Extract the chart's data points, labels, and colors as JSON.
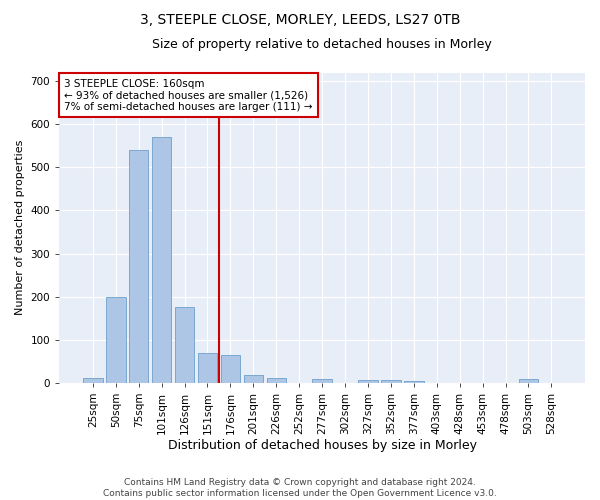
{
  "title": "3, STEEPLE CLOSE, MORLEY, LEEDS, LS27 0TB",
  "subtitle": "Size of property relative to detached houses in Morley",
  "xlabel": "Distribution of detached houses by size in Morley",
  "ylabel": "Number of detached properties",
  "categories": [
    "25sqm",
    "50sqm",
    "75sqm",
    "101sqm",
    "126sqm",
    "151sqm",
    "176sqm",
    "201sqm",
    "226sqm",
    "252sqm",
    "277sqm",
    "302sqm",
    "327sqm",
    "352sqm",
    "377sqm",
    "403sqm",
    "428sqm",
    "453sqm",
    "478sqm",
    "503sqm",
    "528sqm"
  ],
  "values": [
    10,
    200,
    540,
    570,
    175,
    70,
    65,
    18,
    10,
    0,
    8,
    0,
    7,
    6,
    5,
    0,
    0,
    0,
    0,
    8,
    0
  ],
  "bar_color": "#adc6e5",
  "bar_edge_color": "#6ea0cc",
  "property_line_x": 5.5,
  "annotation_text": "3 STEEPLE CLOSE: 160sqm\n← 93% of detached houses are smaller (1,526)\n7% of semi-detached houses are larger (111) →",
  "annotation_box_color": "#ffffff",
  "annotation_box_edge": "#cc0000",
  "vline_color": "#cc0000",
  "ylim": [
    0,
    720
  ],
  "yticks": [
    0,
    100,
    200,
    300,
    400,
    500,
    600,
    700
  ],
  "background_color": "#e8eef7",
  "grid_color": "#ffffff",
  "footer_line1": "Contains HM Land Registry data © Crown copyright and database right 2024.",
  "footer_line2": "Contains public sector information licensed under the Open Government Licence v3.0.",
  "title_fontsize": 10,
  "subtitle_fontsize": 9,
  "xlabel_fontsize": 9,
  "ylabel_fontsize": 8,
  "tick_fontsize": 7.5,
  "annotation_fontsize": 7.5,
  "footer_fontsize": 6.5
}
